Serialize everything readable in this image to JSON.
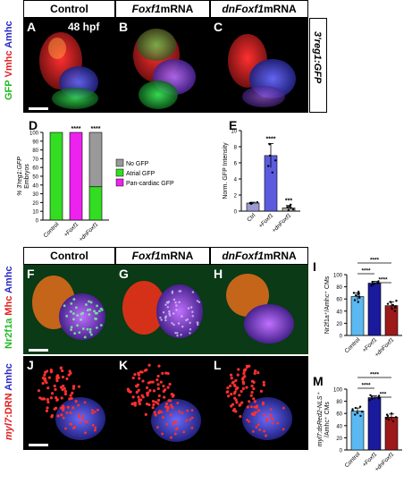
{
  "header": {
    "control": "Control",
    "foxf1": "Foxf1",
    "foxf1_suffix": " mRNA",
    "dnfoxf1": "dnFoxf1",
    "dnfoxf1_suffix": " mRNA"
  },
  "row1": {
    "label_gfp": "GFP",
    "label_vmhc": "Vmhc",
    "label_amhc": "Amhc",
    "stage": "48 hpf",
    "side_label": "3'reg1:GFP",
    "panels": [
      "A",
      "B",
      "C"
    ]
  },
  "panelD": {
    "letter": "D",
    "ylabel_italic": "% 3'reg1:GFP",
    "ylabel_rest": "Embryos",
    "legend": [
      "No GFP",
      "Atrial GFP",
      "Pan-cardiac GFP"
    ],
    "colors": {
      "none": "#999999",
      "atrial": "#33dd22",
      "pan": "#ee22ee"
    }
  },
  "panelE": {
    "letter": "E",
    "ylabel": "Norm. GFP Intensity"
  },
  "row2": {
    "label_nr2f1a": "Nr2f1a",
    "label_mhc": "Mhc",
    "label_amhc": "Amhc",
    "panels": [
      "F",
      "G",
      "H"
    ],
    "chart_letter": "I",
    "chart_ylabel": "Nr2f1a⁺/Amhc⁺ CMs"
  },
  "row3": {
    "label_myl7": "myl7",
    "label_drn": ":DRN",
    "label_amhc": "Amhc",
    "panels": [
      "J",
      "K",
      "L"
    ],
    "chart_letter": "M",
    "chart_ylabel_1": "myl7:dsRed2-NLS⁺",
    "chart_ylabel_2": "/Amhc⁺ CMs"
  },
  "chart_data": [
    {
      "id": "D",
      "type": "bar",
      "stacked": true,
      "categories": [
        "Control",
        "+Foxf1",
        "+dnFoxf1"
      ],
      "series": [
        {
          "name": "Atrial GFP",
          "values": [
            100,
            0,
            38
          ]
        },
        {
          "name": "Pan-cardiac GFP",
          "values": [
            0,
            100,
            0
          ]
        },
        {
          "name": "No GFP",
          "values": [
            0,
            0,
            62
          ]
        }
      ],
      "annotations": [
        "",
        "****",
        "****"
      ],
      "ylim": [
        0,
        100
      ],
      "yticks": [
        0,
        10,
        20,
        30,
        40,
        50,
        60,
        70,
        80,
        90,
        100
      ]
    },
    {
      "id": "E",
      "type": "bar",
      "categories": [
        "Ctrl",
        "+Foxf1",
        "+dnFoxf1"
      ],
      "values": [
        1.0,
        6.9,
        0.4
      ],
      "errors": [
        0.1,
        1.5,
        0.3
      ],
      "points": [
        [
          0.9,
          1.0,
          1.1,
          1.0
        ],
        [
          4.8,
          5.6,
          6.3,
          6.9,
          8.3
        ],
        [
          0.1,
          0.2,
          0.4,
          0.5,
          0.6,
          0.8
        ]
      ],
      "annotations": [
        "",
        "****",
        "***"
      ],
      "ylim": [
        0,
        10
      ],
      "yticks": [
        0,
        2,
        4,
        6,
        8,
        10
      ],
      "colors": [
        "#9a9ad0",
        "#5b5be0",
        "#aaaaaa"
      ]
    },
    {
      "id": "I",
      "type": "bar",
      "categories": [
        "Control",
        "+Foxf1",
        "+dnFoxf1"
      ],
      "values": [
        64,
        86,
        49
      ],
      "errors": [
        6,
        3,
        6
      ],
      "points": [
        [
          55,
          58,
          62,
          64,
          66,
          68,
          70,
          72
        ],
        [
          82,
          84,
          85,
          86,
          87,
          88,
          89
        ],
        [
          40,
          44,
          46,
          48,
          50,
          52,
          55,
          57
        ]
      ],
      "brackets": [
        [
          "Control",
          "+Foxf1",
          "****"
        ],
        [
          "Control",
          "+dnFoxf1",
          "****"
        ],
        [
          "+Foxf1",
          "+dnFoxf1",
          "****"
        ]
      ],
      "ylim": [
        0,
        100
      ],
      "yticks": [
        0,
        20,
        40,
        60,
        80,
        100
      ],
      "colors": [
        "#5bb8f0",
        "#1a1a9c",
        "#9c1a1a"
      ]
    },
    {
      "id": "M",
      "type": "bar",
      "categories": [
        "Control",
        "+Foxf1",
        "+dnFoxf1"
      ],
      "values": [
        64,
        86,
        54
      ],
      "errors": [
        5,
        3,
        5
      ],
      "points": [
        [
          56,
          58,
          61,
          63,
          65,
          67,
          69,
          71
        ],
        [
          82,
          84,
          85,
          87,
          88,
          89,
          90
        ],
        [
          47,
          50,
          52,
          54,
          56,
          58,
          60
        ]
      ],
      "brackets": [
        [
          "Control",
          "+Foxf1",
          "****"
        ],
        [
          "Control",
          "+dnFoxf1",
          "****"
        ],
        [
          "+Foxf1",
          "+dnFoxf1",
          "***"
        ]
      ],
      "ylim": [
        0,
        100
      ],
      "yticks": [
        0,
        20,
        40,
        60,
        80,
        100
      ],
      "colors": [
        "#5bb8f0",
        "#1a1a9c",
        "#9c1a1a"
      ]
    }
  ]
}
